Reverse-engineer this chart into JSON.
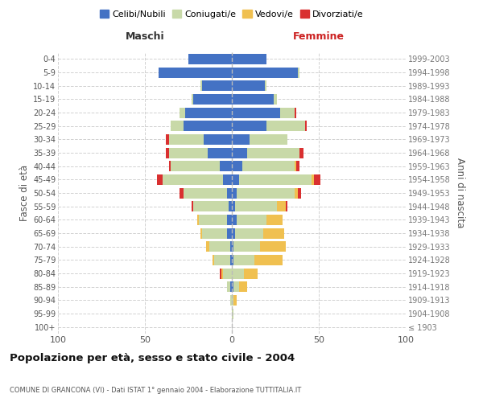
{
  "age_groups": [
    "100+",
    "95-99",
    "90-94",
    "85-89",
    "80-84",
    "75-79",
    "70-74",
    "65-69",
    "60-64",
    "55-59",
    "50-54",
    "45-49",
    "40-44",
    "35-39",
    "30-34",
    "25-29",
    "20-24",
    "15-19",
    "10-14",
    "5-9",
    "0-4"
  ],
  "birth_years": [
    "≤ 1903",
    "1904-1908",
    "1909-1913",
    "1914-1918",
    "1919-1923",
    "1924-1928",
    "1929-1933",
    "1934-1938",
    "1939-1943",
    "1944-1948",
    "1949-1953",
    "1954-1958",
    "1959-1963",
    "1964-1968",
    "1969-1973",
    "1974-1978",
    "1979-1983",
    "1984-1988",
    "1989-1993",
    "1994-1998",
    "1999-2003"
  ],
  "colors": {
    "celibi": "#4472c4",
    "coniugati": "#c8d9a8",
    "vedovi": "#f0c050",
    "divorziati": "#d93030"
  },
  "maschi": {
    "celibi": [
      0,
      0,
      0,
      1,
      0,
      1,
      1,
      3,
      3,
      2,
      3,
      5,
      7,
      14,
      16,
      28,
      27,
      22,
      17,
      42,
      25
    ],
    "coniugati": [
      0,
      0,
      1,
      2,
      5,
      9,
      12,
      14,
      16,
      20,
      25,
      35,
      28,
      22,
      20,
      7,
      3,
      1,
      1,
      0,
      0
    ],
    "vedovi": [
      0,
      0,
      0,
      0,
      1,
      1,
      2,
      1,
      1,
      0,
      0,
      0,
      0,
      0,
      0,
      0,
      0,
      0,
      0,
      0,
      0
    ],
    "divorziati": [
      0,
      0,
      0,
      0,
      1,
      0,
      0,
      0,
      0,
      1,
      2,
      3,
      1,
      2,
      2,
      0,
      0,
      0,
      0,
      0,
      0
    ]
  },
  "femmine": {
    "celibi": [
      0,
      0,
      0,
      1,
      0,
      1,
      1,
      2,
      3,
      2,
      3,
      4,
      6,
      9,
      10,
      20,
      28,
      24,
      19,
      38,
      20
    ],
    "coniugati": [
      0,
      1,
      1,
      3,
      7,
      12,
      15,
      16,
      17,
      24,
      33,
      42,
      30,
      30,
      22,
      22,
      8,
      2,
      1,
      1,
      0
    ],
    "vedovi": [
      0,
      0,
      2,
      5,
      8,
      16,
      15,
      12,
      9,
      5,
      2,
      1,
      1,
      0,
      0,
      0,
      0,
      0,
      0,
      0,
      0
    ],
    "divorziati": [
      0,
      0,
      0,
      0,
      0,
      0,
      0,
      0,
      0,
      1,
      2,
      4,
      2,
      2,
      0,
      1,
      1,
      0,
      0,
      0,
      0
    ]
  },
  "xlim": 100,
  "title": "Popolazione per età, sesso e stato civile - 2004",
  "subtitle": "COMUNE DI GRANCONA (VI) - Dati ISTAT 1° gennaio 2004 - Elaborazione TUTTITALIA.IT",
  "ylabel_left": "Fasce di età",
  "ylabel_right": "Anni di nascita",
  "xlabel_left": "Maschi",
  "xlabel_right": "Femmine",
  "background_color": "#ffffff",
  "grid_color": "#cccccc"
}
